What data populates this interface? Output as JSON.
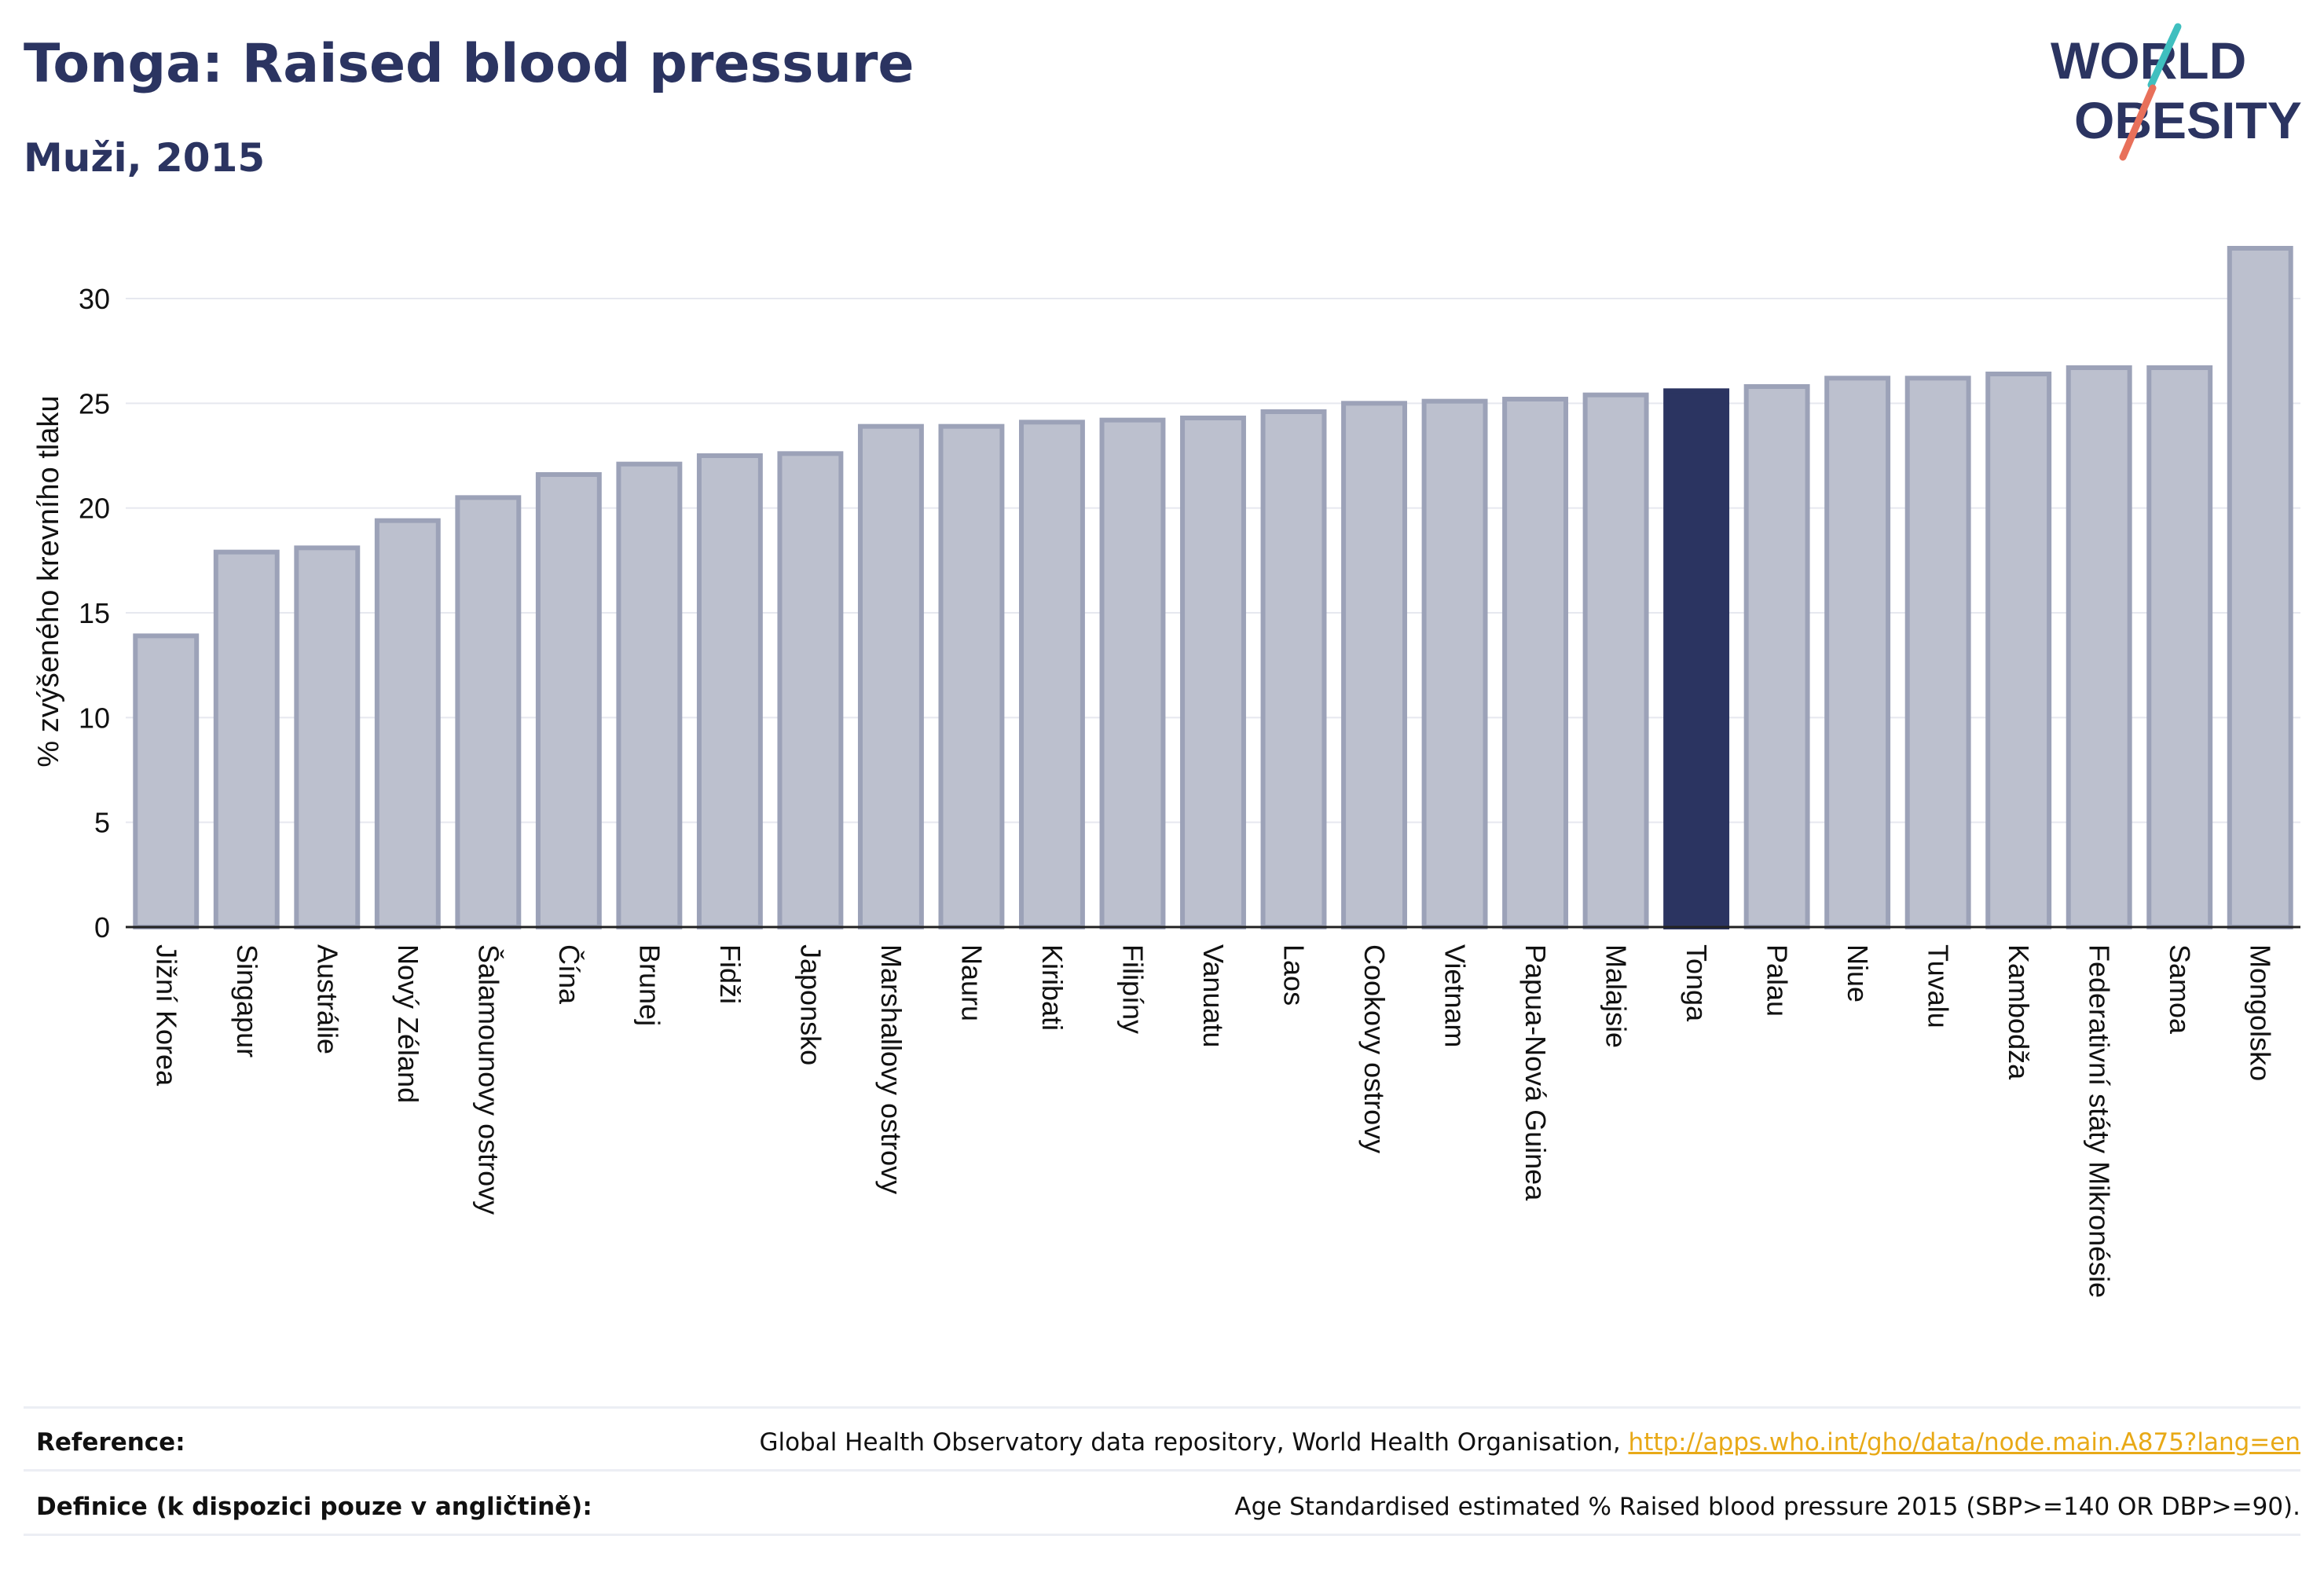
{
  "header": {
    "title": "Tonga: Raised blood pressure",
    "subtitle": "Muži, 2015"
  },
  "logo": {
    "line1": "WORLD",
    "line2": "OBESITY",
    "accent_colors": [
      "#3fbfbf",
      "#e8705a"
    ]
  },
  "chart_data": {
    "type": "bar",
    "ylabel": "% zvýšeného krevního tlaku",
    "xlabel": "",
    "ylim": [
      0,
      33
    ],
    "yticks": [
      0,
      5,
      10,
      15,
      20,
      25,
      30
    ],
    "grid": true,
    "highlight": "Tonga",
    "colors": {
      "bar": "#bcc0ce",
      "bar_edge": "#9ca2b8",
      "highlight": "#2b3461"
    },
    "categories": [
      "Jižní Korea",
      "Singapur",
      "Austrálie",
      "Nový Zéland",
      "Šalamounovy ostrovy",
      "Čína",
      "Brunej",
      "Fidži",
      "Japonsko",
      "Marshallovy ostrovy",
      "Nauru",
      "Kiribati",
      "Filipíny",
      "Vanuatu",
      "Laos",
      "Cookovy ostrovy",
      "Vietnam",
      "Papua-Nová Guinea",
      "Malajsie",
      "Tonga",
      "Palau",
      "Niue",
      "Tuvalu",
      "Kambodža",
      "Federativní státy Mikronésie",
      "Samoa",
      "Mongolsko"
    ],
    "values": [
      13.9,
      17.9,
      18.1,
      19.4,
      20.5,
      21.6,
      22.1,
      22.5,
      22.6,
      23.9,
      23.9,
      24.1,
      24.2,
      24.3,
      24.6,
      25.0,
      25.1,
      25.2,
      25.4,
      25.6,
      25.8,
      26.2,
      26.2,
      26.4,
      26.7,
      26.7,
      32.4
    ]
  },
  "footer": {
    "reference_label": "Reference:",
    "reference_text": "Global Health Observatory data repository, World Health Organisation, ",
    "reference_link": "http://apps.who.int/gho/data/node.main.A875?lang=en",
    "definition_label": "Definice (k dispozici pouze v angličtině):",
    "definition_text": "Age Standardised estimated % Raised blood pressure 2015 (SBP>=140 OR DBP>=90)."
  }
}
